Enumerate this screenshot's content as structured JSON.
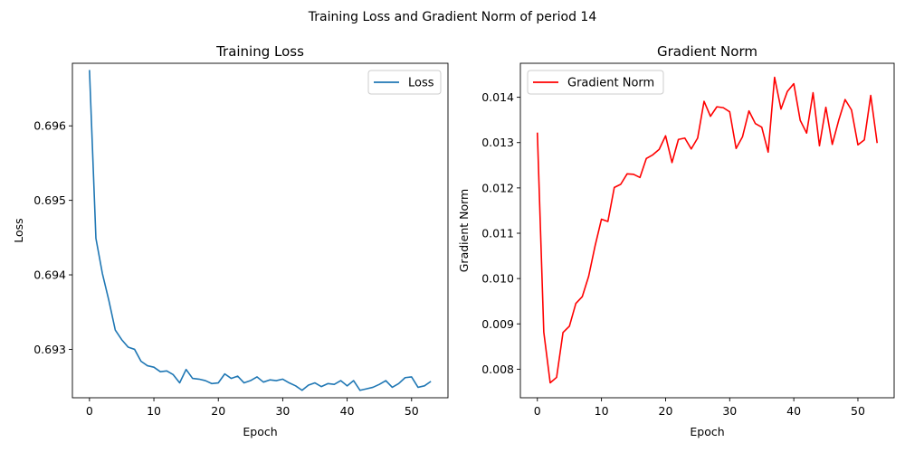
{
  "figure": {
    "title": "Training Loss and Gradient Norm of period 14"
  },
  "chart_data": [
    {
      "type": "line",
      "title": "Training Loss",
      "xlabel": "Epoch",
      "ylabel": "Loss",
      "xlim": [
        -2.65,
        55.65
      ],
      "ylim": [
        0.69235,
        0.69684
      ],
      "xticks": [
        0,
        10,
        20,
        30,
        40,
        50
      ],
      "yticks": [
        0.693,
        0.694,
        0.695,
        0.696
      ],
      "xtick_labels": [
        "0",
        "10",
        "20",
        "30",
        "40",
        "50"
      ],
      "ytick_labels": [
        "0.693",
        "0.694",
        "0.695",
        "0.696"
      ],
      "legend_position": "upper right",
      "grid": false,
      "series": [
        {
          "name": "Loss",
          "color": "#1f77b4",
          "x": [
            0,
            1,
            2,
            3,
            4,
            5,
            6,
            7,
            8,
            9,
            10,
            11,
            12,
            13,
            14,
            15,
            16,
            17,
            18,
            19,
            20,
            21,
            22,
            23,
            24,
            25,
            26,
            27,
            28,
            29,
            30,
            31,
            32,
            33,
            34,
            35,
            36,
            37,
            38,
            39,
            40,
            41,
            42,
            43,
            44,
            45,
            46,
            47,
            48,
            49,
            50,
            51,
            52,
            53
          ],
          "y": [
            0.69675,
            0.69449,
            0.69402,
            0.69366,
            0.69326,
            0.69313,
            0.69303,
            0.693,
            0.69284,
            0.69278,
            0.69276,
            0.6927,
            0.69271,
            0.69266,
            0.69255,
            0.69273,
            0.69261,
            0.6926,
            0.69258,
            0.69254,
            0.69255,
            0.69267,
            0.69261,
            0.69264,
            0.69255,
            0.69258,
            0.69263,
            0.69256,
            0.69259,
            0.69258,
            0.6926,
            0.69255,
            0.69251,
            0.69245,
            0.69252,
            0.69255,
            0.6925,
            0.69254,
            0.69253,
            0.69258,
            0.69251,
            0.69258,
            0.69245,
            0.69247,
            0.69249,
            0.69253,
            0.69258,
            0.69249,
            0.69254,
            0.69262,
            0.69263,
            0.69249,
            0.69251,
            0.69257
          ]
        }
      ]
    },
    {
      "type": "line",
      "title": "Gradient Norm",
      "xlabel": "Epoch",
      "ylabel": "Gradient Norm",
      "xlim": [
        -2.65,
        55.65
      ],
      "ylim": [
        0.00737,
        0.01475
      ],
      "xticks": [
        0,
        10,
        20,
        30,
        40,
        50
      ],
      "yticks": [
        0.008,
        0.009,
        0.01,
        0.011,
        0.012,
        0.013,
        0.014
      ],
      "xtick_labels": [
        "0",
        "10",
        "20",
        "30",
        "40",
        "50"
      ],
      "ytick_labels": [
        "0.008",
        "0.009",
        "0.010",
        "0.011",
        "0.012",
        "0.013",
        "0.014"
      ],
      "legend_position": "upper left",
      "grid": false,
      "series": [
        {
          "name": "Gradient Norm",
          "color": "#ff0000",
          "x": [
            0,
            1,
            2,
            3,
            4,
            5,
            6,
            7,
            8,
            9,
            10,
            11,
            12,
            13,
            14,
            15,
            16,
            17,
            18,
            19,
            20,
            21,
            22,
            23,
            24,
            25,
            26,
            27,
            28,
            29,
            30,
            31,
            32,
            33,
            34,
            35,
            36,
            37,
            38,
            39,
            40,
            41,
            42,
            43,
            44,
            45,
            46,
            47,
            48,
            49,
            50,
            51,
            52,
            53
          ],
          "y": [
            0.01322,
            0.00882,
            0.0077,
            0.00782,
            0.00881,
            0.00895,
            0.00945,
            0.0096,
            0.01005,
            0.01072,
            0.01131,
            0.01126,
            0.01201,
            0.01208,
            0.01231,
            0.0123,
            0.01223,
            0.01265,
            0.01273,
            0.01285,
            0.01315,
            0.01256,
            0.01307,
            0.0131,
            0.01286,
            0.0131,
            0.01391,
            0.01358,
            0.01379,
            0.01377,
            0.01368,
            0.01287,
            0.01313,
            0.0137,
            0.01342,
            0.01334,
            0.01279,
            0.01444,
            0.01374,
            0.01413,
            0.0143,
            0.01349,
            0.01321,
            0.0141,
            0.01293,
            0.01378,
            0.01296,
            0.01349,
            0.01395,
            0.01372,
            0.01295,
            0.01306,
            0.01404,
            0.01299
          ]
        }
      ]
    }
  ]
}
